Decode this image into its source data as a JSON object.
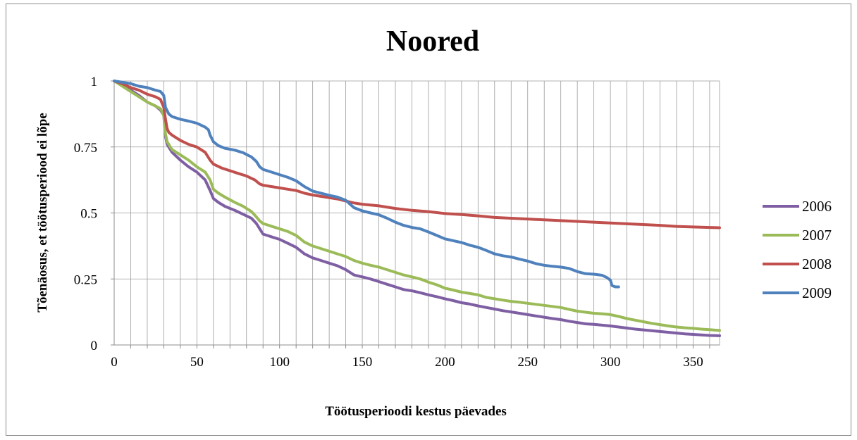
{
  "chart_data": {
    "type": "line",
    "title": "Noored",
    "xlabel": "Töötusperioodi kestus päevades",
    "ylabel": "Tõenäosus, et töötusperiood ei lõpe",
    "xlim": [
      0,
      366
    ],
    "ylim": [
      0,
      1
    ],
    "x_ticks": [
      0,
      50,
      100,
      150,
      200,
      250,
      300,
      350
    ],
    "y_ticks": [
      0,
      0.25,
      0.5,
      0.75,
      1
    ],
    "y_tick_labels": [
      "0",
      "0.25",
      "0.5",
      "0.75",
      "1"
    ],
    "grid": "vertical every 10 days, horizontal at y ticks",
    "legend_position": "right",
    "series": [
      {
        "name": "2006",
        "color": "#7f5fa3",
        "points": [
          [
            0,
            1
          ],
          [
            5,
            0.985
          ],
          [
            10,
            0.965
          ],
          [
            15,
            0.945
          ],
          [
            20,
            0.92
          ],
          [
            25,
            0.905
          ],
          [
            28,
            0.89
          ],
          [
            30,
            0.87
          ],
          [
            31,
            0.79
          ],
          [
            32,
            0.76
          ],
          [
            35,
            0.73
          ],
          [
            40,
            0.7
          ],
          [
            45,
            0.675
          ],
          [
            50,
            0.655
          ],
          [
            55,
            0.625
          ],
          [
            58,
            0.585
          ],
          [
            60,
            0.555
          ],
          [
            63,
            0.54
          ],
          [
            67,
            0.525
          ],
          [
            73,
            0.51
          ],
          [
            78,
            0.495
          ],
          [
            83,
            0.48
          ],
          [
            86,
            0.46
          ],
          [
            88,
            0.44
          ],
          [
            90,
            0.42
          ],
          [
            95,
            0.41
          ],
          [
            100,
            0.4
          ],
          [
            105,
            0.385
          ],
          [
            110,
            0.37
          ],
          [
            115,
            0.345
          ],
          [
            120,
            0.33
          ],
          [
            125,
            0.32
          ],
          [
            130,
            0.31
          ],
          [
            135,
            0.3
          ],
          [
            140,
            0.285
          ],
          [
            145,
            0.265
          ],
          [
            150,
            0.258
          ],
          [
            155,
            0.25
          ],
          [
            160,
            0.24
          ],
          [
            165,
            0.23
          ],
          [
            170,
            0.22
          ],
          [
            175,
            0.21
          ],
          [
            180,
            0.205
          ],
          [
            185,
            0.198
          ],
          [
            190,
            0.19
          ],
          [
            195,
            0.183
          ],
          [
            200,
            0.175
          ],
          [
            205,
            0.168
          ],
          [
            210,
            0.16
          ],
          [
            215,
            0.155
          ],
          [
            220,
            0.148
          ],
          [
            225,
            0.142
          ],
          [
            230,
            0.136
          ],
          [
            235,
            0.13
          ],
          [
            240,
            0.125
          ],
          [
            245,
            0.12
          ],
          [
            250,
            0.115
          ],
          [
            255,
            0.11
          ],
          [
            260,
            0.105
          ],
          [
            265,
            0.1
          ],
          [
            270,
            0.096
          ],
          [
            275,
            0.09
          ],
          [
            280,
            0.085
          ],
          [
            285,
            0.08
          ],
          [
            290,
            0.078
          ],
          [
            295,
            0.075
          ],
          [
            300,
            0.072
          ],
          [
            305,
            0.068
          ],
          [
            310,
            0.064
          ],
          [
            315,
            0.06
          ],
          [
            320,
            0.057
          ],
          [
            325,
            0.054
          ],
          [
            330,
            0.051
          ],
          [
            335,
            0.048
          ],
          [
            340,
            0.045
          ],
          [
            345,
            0.042
          ],
          [
            350,
            0.04
          ],
          [
            355,
            0.038
          ],
          [
            360,
            0.036
          ],
          [
            366,
            0.035
          ]
        ]
      },
      {
        "name": "2007",
        "color": "#9bbb59",
        "points": [
          [
            0,
            1
          ],
          [
            5,
            0.98
          ],
          [
            10,
            0.96
          ],
          [
            15,
            0.94
          ],
          [
            20,
            0.92
          ],
          [
            25,
            0.905
          ],
          [
            28,
            0.895
          ],
          [
            30,
            0.87
          ],
          [
            31,
            0.8
          ],
          [
            32,
            0.77
          ],
          [
            35,
            0.74
          ],
          [
            40,
            0.72
          ],
          [
            45,
            0.7
          ],
          [
            50,
            0.675
          ],
          [
            55,
            0.655
          ],
          [
            58,
            0.625
          ],
          [
            60,
            0.59
          ],
          [
            63,
            0.575
          ],
          [
            67,
            0.56
          ],
          [
            73,
            0.54
          ],
          [
            78,
            0.525
          ],
          [
            83,
            0.505
          ],
          [
            86,
            0.485
          ],
          [
            88,
            0.47
          ],
          [
            90,
            0.46
          ],
          [
            95,
            0.45
          ],
          [
            100,
            0.44
          ],
          [
            105,
            0.43
          ],
          [
            110,
            0.415
          ],
          [
            115,
            0.39
          ],
          [
            120,
            0.375
          ],
          [
            125,
            0.365
          ],
          [
            130,
            0.355
          ],
          [
            135,
            0.345
          ],
          [
            140,
            0.335
          ],
          [
            145,
            0.32
          ],
          [
            150,
            0.31
          ],
          [
            155,
            0.302
          ],
          [
            160,
            0.295
          ],
          [
            165,
            0.285
          ],
          [
            170,
            0.275
          ],
          [
            175,
            0.265
          ],
          [
            180,
            0.258
          ],
          [
            185,
            0.25
          ],
          [
            190,
            0.238
          ],
          [
            195,
            0.228
          ],
          [
            200,
            0.215
          ],
          [
            205,
            0.208
          ],
          [
            210,
            0.2
          ],
          [
            215,
            0.195
          ],
          [
            220,
            0.19
          ],
          [
            225,
            0.18
          ],
          [
            230,
            0.175
          ],
          [
            235,
            0.17
          ],
          [
            240,
            0.165
          ],
          [
            245,
            0.162
          ],
          [
            250,
            0.158
          ],
          [
            255,
            0.154
          ],
          [
            260,
            0.15
          ],
          [
            265,
            0.146
          ],
          [
            270,
            0.142
          ],
          [
            275,
            0.135
          ],
          [
            280,
            0.128
          ],
          [
            285,
            0.124
          ],
          [
            290,
            0.12
          ],
          [
            295,
            0.118
          ],
          [
            300,
            0.115
          ],
          [
            305,
            0.108
          ],
          [
            310,
            0.1
          ],
          [
            315,
            0.094
          ],
          [
            320,
            0.088
          ],
          [
            325,
            0.082
          ],
          [
            330,
            0.077
          ],
          [
            335,
            0.072
          ],
          [
            340,
            0.068
          ],
          [
            345,
            0.065
          ],
          [
            350,
            0.063
          ],
          [
            355,
            0.06
          ],
          [
            360,
            0.058
          ],
          [
            366,
            0.055
          ]
        ]
      },
      {
        "name": "2008",
        "color": "#c0504d",
        "points": [
          [
            0,
            1
          ],
          [
            5,
            0.99
          ],
          [
            10,
            0.975
          ],
          [
            15,
            0.965
          ],
          [
            20,
            0.95
          ],
          [
            25,
            0.94
          ],
          [
            28,
            0.93
          ],
          [
            30,
            0.9
          ],
          [
            31,
            0.855
          ],
          [
            32,
            0.82
          ],
          [
            33,
            0.805
          ],
          [
            35,
            0.795
          ],
          [
            40,
            0.775
          ],
          [
            45,
            0.76
          ],
          [
            50,
            0.75
          ],
          [
            55,
            0.73
          ],
          [
            58,
            0.7
          ],
          [
            60,
            0.685
          ],
          [
            65,
            0.67
          ],
          [
            70,
            0.66
          ],
          [
            75,
            0.65
          ],
          [
            80,
            0.64
          ],
          [
            85,
            0.625
          ],
          [
            88,
            0.61
          ],
          [
            90,
            0.605
          ],
          [
            95,
            0.6
          ],
          [
            100,
            0.595
          ],
          [
            105,
            0.59
          ],
          [
            110,
            0.585
          ],
          [
            115,
            0.575
          ],
          [
            120,
            0.568
          ],
          [
            125,
            0.563
          ],
          [
            130,
            0.558
          ],
          [
            135,
            0.553
          ],
          [
            140,
            0.545
          ],
          [
            145,
            0.538
          ],
          [
            150,
            0.533
          ],
          [
            160,
            0.527
          ],
          [
            170,
            0.517
          ],
          [
            180,
            0.51
          ],
          [
            190,
            0.505
          ],
          [
            200,
            0.498
          ],
          [
            210,
            0.494
          ],
          [
            220,
            0.489
          ],
          [
            230,
            0.483
          ],
          [
            240,
            0.48
          ],
          [
            250,
            0.477
          ],
          [
            260,
            0.474
          ],
          [
            270,
            0.471
          ],
          [
            280,
            0.468
          ],
          [
            290,
            0.465
          ],
          [
            300,
            0.462
          ],
          [
            310,
            0.459
          ],
          [
            320,
            0.456
          ],
          [
            330,
            0.453
          ],
          [
            340,
            0.449
          ],
          [
            350,
            0.447
          ],
          [
            360,
            0.445
          ],
          [
            366,
            0.444
          ]
        ]
      },
      {
        "name": "2009",
        "color": "#4f81bd",
        "points": [
          [
            0,
            1
          ],
          [
            5,
            0.995
          ],
          [
            10,
            0.99
          ],
          [
            15,
            0.98
          ],
          [
            20,
            0.975
          ],
          [
            25,
            0.965
          ],
          [
            28,
            0.96
          ],
          [
            30,
            0.945
          ],
          [
            31,
            0.9
          ],
          [
            33,
            0.875
          ],
          [
            35,
            0.865
          ],
          [
            40,
            0.855
          ],
          [
            45,
            0.848
          ],
          [
            50,
            0.84
          ],
          [
            55,
            0.825
          ],
          [
            57,
            0.815
          ],
          [
            58,
            0.795
          ],
          [
            60,
            0.77
          ],
          [
            63,
            0.755
          ],
          [
            67,
            0.745
          ],
          [
            73,
            0.738
          ],
          [
            78,
            0.728
          ],
          [
            83,
            0.712
          ],
          [
            86,
            0.695
          ],
          [
            88,
            0.675
          ],
          [
            90,
            0.665
          ],
          [
            95,
            0.655
          ],
          [
            100,
            0.645
          ],
          [
            105,
            0.635
          ],
          [
            110,
            0.622
          ],
          [
            115,
            0.6
          ],
          [
            120,
            0.583
          ],
          [
            125,
            0.575
          ],
          [
            130,
            0.567
          ],
          [
            135,
            0.56
          ],
          [
            140,
            0.548
          ],
          [
            145,
            0.52
          ],
          [
            150,
            0.508
          ],
          [
            155,
            0.5
          ],
          [
            160,
            0.493
          ],
          [
            165,
            0.48
          ],
          [
            170,
            0.465
          ],
          [
            175,
            0.453
          ],
          [
            180,
            0.445
          ],
          [
            185,
            0.44
          ],
          [
            190,
            0.428
          ],
          [
            195,
            0.415
          ],
          [
            200,
            0.402
          ],
          [
            205,
            0.395
          ],
          [
            210,
            0.388
          ],
          [
            215,
            0.378
          ],
          [
            220,
            0.37
          ],
          [
            225,
            0.358
          ],
          [
            230,
            0.345
          ],
          [
            235,
            0.338
          ],
          [
            240,
            0.333
          ],
          [
            245,
            0.325
          ],
          [
            250,
            0.318
          ],
          [
            255,
            0.308
          ],
          [
            260,
            0.302
          ],
          [
            265,
            0.298
          ],
          [
            270,
            0.295
          ],
          [
            275,
            0.29
          ],
          [
            280,
            0.278
          ],
          [
            285,
            0.27
          ],
          [
            290,
            0.268
          ],
          [
            295,
            0.264
          ],
          [
            298,
            0.255
          ],
          [
            300,
            0.245
          ],
          [
            301,
            0.225
          ],
          [
            303,
            0.22
          ],
          [
            305,
            0.22
          ]
        ]
      }
    ]
  }
}
